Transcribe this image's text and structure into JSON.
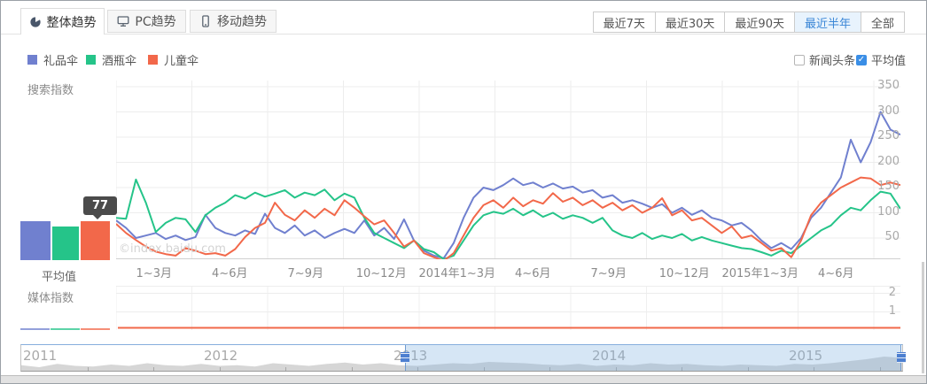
{
  "header": {
    "tabs": [
      {
        "label": "整体趋势",
        "icon": "pie-chart-icon",
        "active": true
      },
      {
        "label": "PC趋势",
        "icon": "monitor-icon",
        "active": false
      },
      {
        "label": "移动趋势",
        "icon": "mobile-icon",
        "active": false
      }
    ],
    "ranges": [
      {
        "label": "最近7天",
        "active": false
      },
      {
        "label": "最近30天",
        "active": false
      },
      {
        "label": "最近90天",
        "active": false
      },
      {
        "label": "最近半年",
        "active": true
      },
      {
        "label": "全部",
        "active": false
      }
    ]
  },
  "legend": {
    "items": [
      {
        "label": "礼品伞",
        "color": "#7080cf"
      },
      {
        "label": "酒瓶伞",
        "color": "#25c489"
      },
      {
        "label": "儿童伞",
        "color": "#f2684a"
      }
    ]
  },
  "toggles": {
    "news": {
      "label": "新闻头条",
      "checked": false
    },
    "average": {
      "label": "平均值",
      "checked": true
    }
  },
  "sections": {
    "search_index_label": "搜索指数",
    "media_index_label": "媒体指数",
    "average_label": "平均值",
    "tooltip_value": "77",
    "watermark": "©index.baidu.com"
  },
  "slider": {
    "years": [
      "2011",
      "2012",
      "2013",
      "2014",
      "2015"
    ],
    "sparkline": [
      0.35,
      0.2,
      0.45,
      0.3,
      0.25,
      0.4,
      0.3,
      0.5,
      0.35,
      0.3,
      0.45,
      0.3,
      0.35,
      0.25,
      0.5,
      0.4,
      0.3,
      0.45,
      0.55,
      0.4,
      0.5,
      0.35,
      0.3,
      0.4,
      0.5,
      0.45,
      0.6,
      0.55,
      0.5,
      0.4,
      0.35,
      0.45,
      0.3,
      0.4,
      0.35,
      0.5,
      0.4,
      0.45,
      0.35,
      0.3,
      0.4,
      0.35,
      0.3,
      0.45,
      0.4,
      0.5,
      0.65,
      0.8,
      1.0,
      0.9
    ]
  },
  "chart_data": [
    {
      "type": "line",
      "title": "搜索指数",
      "legend_position": "top-left",
      "grid": true,
      "categories": [
        "1~3月",
        "4~6月",
        "7~9月",
        "10~12月",
        "2014年1~3月",
        "4~6月",
        "7~9月",
        "10~12月",
        "2015年1~3月",
        "4~6月"
      ],
      "yticks": [
        50,
        100,
        150,
        200,
        250,
        300,
        350
      ],
      "ylim": [
        0,
        362
      ],
      "series": [
        {
          "name": "礼品伞",
          "color": "#7080cf",
          "values": [
            85,
            70,
            50,
            55,
            60,
            48,
            55,
            46,
            52,
            96,
            70,
            60,
            55,
            65,
            58,
            98,
            70,
            60,
            75,
            55,
            65,
            50,
            60,
            68,
            60,
            85,
            55,
            70,
            48,
            87,
            45,
            25,
            15,
            10,
            40,
            90,
            130,
            150,
            145,
            155,
            168,
            155,
            160,
            150,
            158,
            148,
            152,
            140,
            145,
            130,
            135,
            120,
            125,
            118,
            110,
            117,
            100,
            110,
            96,
            105,
            90,
            85,
            75,
            80,
            65,
            45,
            30,
            40,
            28,
            50,
            90,
            110,
            140,
            170,
            245,
            200,
            240,
            300,
            265,
            255
          ]
        },
        {
          "name": "酒瓶伞",
          "color": "#25c489",
          "values": [
            90,
            88,
            166,
            120,
            62,
            80,
            90,
            87,
            62,
            95,
            110,
            120,
            135,
            128,
            140,
            132,
            138,
            145,
            130,
            140,
            135,
            146,
            125,
            138,
            130,
            90,
            60,
            50,
            40,
            30,
            45,
            28,
            22,
            8,
            15,
            45,
            75,
            95,
            102,
            98,
            108,
            95,
            105,
            92,
            100,
            88,
            95,
            90,
            80,
            90,
            65,
            55,
            50,
            60,
            48,
            55,
            50,
            58,
            45,
            52,
            45,
            40,
            35,
            30,
            28,
            22,
            15,
            25,
            20,
            35,
            50,
            65,
            75,
            95,
            110,
            105,
            125,
            142,
            138,
            108
          ]
        },
        {
          "name": "儿童伞",
          "color": "#f2684a",
          "values": [
            78,
            60,
            46,
            33,
            23,
            18,
            15,
            30,
            25,
            18,
            20,
            15,
            28,
            52,
            70,
            80,
            120,
            96,
            85,
            105,
            90,
            108,
            95,
            125,
            110,
            93,
            77,
            85,
            60,
            33,
            45,
            20,
            12,
            5,
            20,
            55,
            90,
            115,
            125,
            110,
            130,
            113,
            125,
            118,
            139,
            122,
            130,
            115,
            125,
            110,
            120,
            105,
            115,
            100,
            110,
            129,
            95,
            105,
            85,
            90,
            75,
            60,
            73,
            50,
            55,
            40,
            25,
            30,
            12,
            45,
            95,
            120,
            135,
            150,
            160,
            170,
            168,
            155,
            160,
            155
          ]
        }
      ],
      "average_bars": [
        {
          "name": "礼品伞",
          "color": "#7080cf",
          "value": 78
        },
        {
          "name": "酒瓶伞",
          "color": "#25c489",
          "value": 66
        },
        {
          "name": "儿童伞",
          "color": "#f2684a",
          "value": 77,
          "tooltip": "77"
        }
      ]
    },
    {
      "type": "line",
      "title": "媒体指数",
      "yticks": [
        1,
        2
      ],
      "ylim": [
        0,
        2.4
      ],
      "series": [
        {
          "name": "儿童伞",
          "color": "#f2684a",
          "values": [
            0,
            0,
            0,
            0,
            0,
            0,
            0,
            0,
            0,
            0
          ]
        }
      ]
    }
  ]
}
